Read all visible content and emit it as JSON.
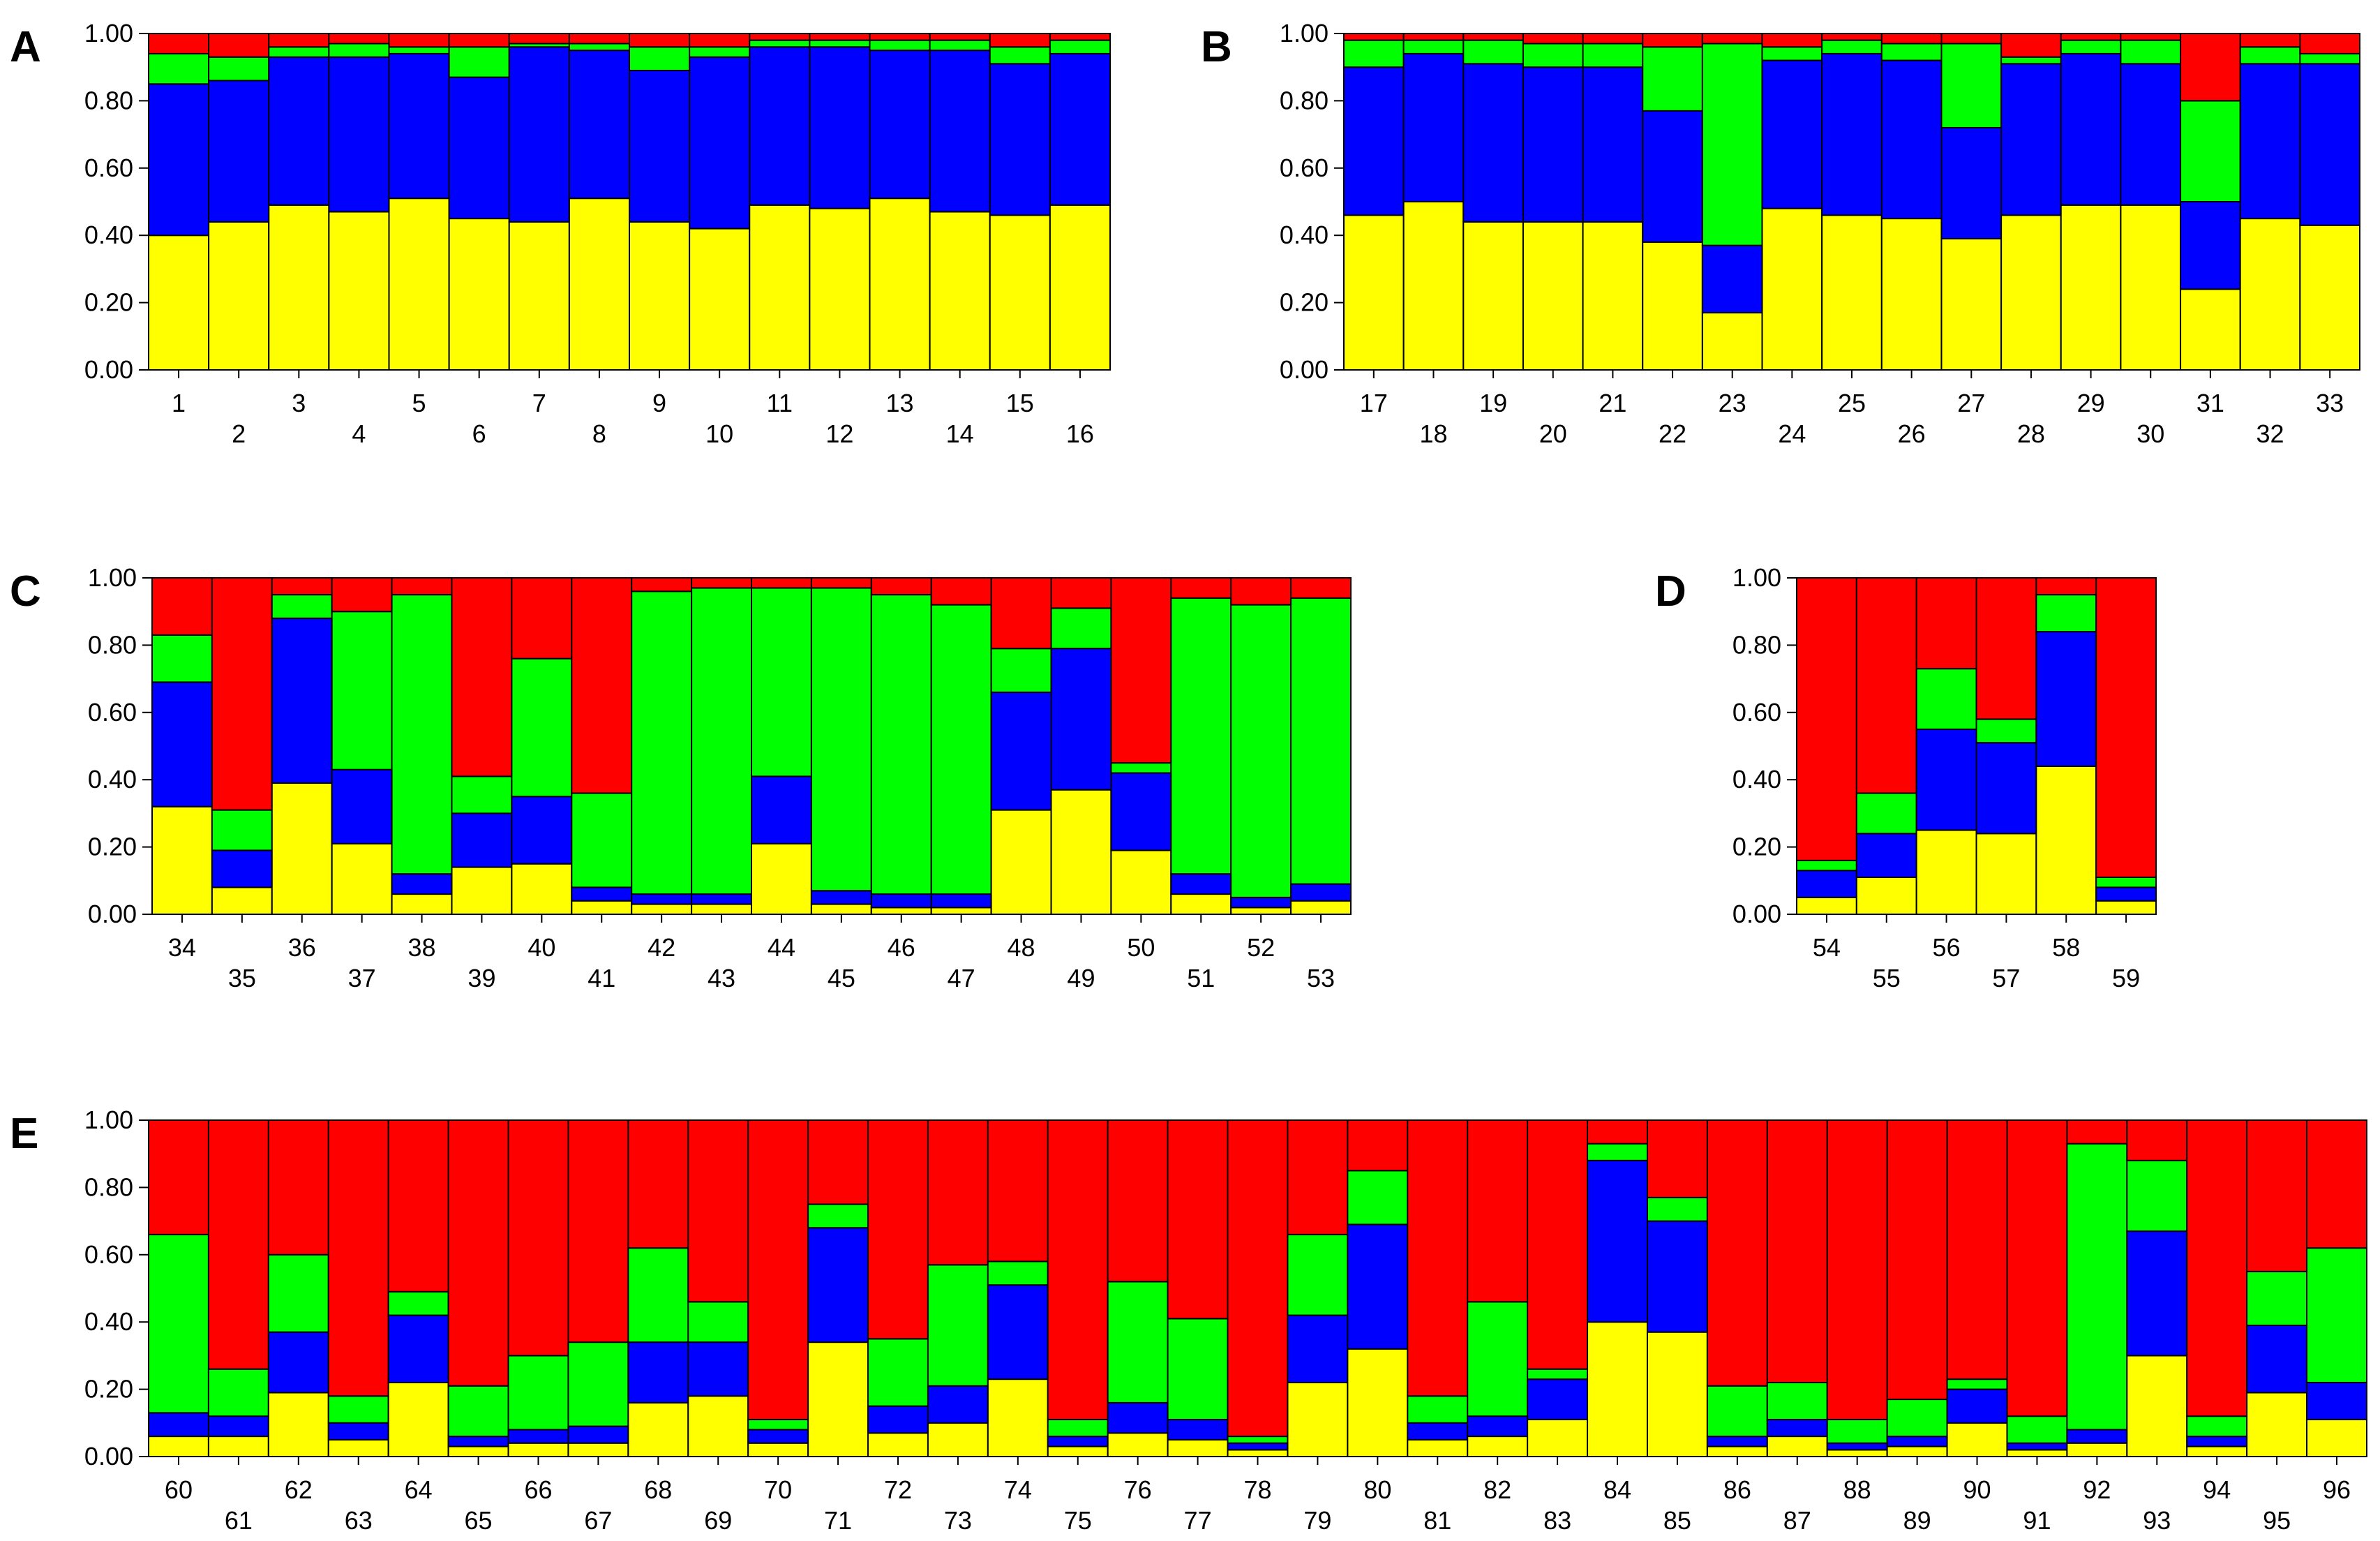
{
  "colors": {
    "yellow": "#ffff00",
    "blue": "#0000ff",
    "green": "#00ff00",
    "red": "#ff0000"
  },
  "yticks": [
    "0.00",
    "0.20",
    "0.40",
    "0.60",
    "0.80",
    "1.00"
  ],
  "chart_data": [
    {
      "type": "bar",
      "stacked": true,
      "panel": "A",
      "ylim": [
        0,
        1
      ],
      "categories": [
        "1",
        "2",
        "3",
        "4",
        "5",
        "6",
        "7",
        "8",
        "9",
        "10",
        "11",
        "12",
        "13",
        "14",
        "15",
        "16"
      ],
      "series": [
        {
          "name": "yellow",
          "values": [
            0.4,
            0.44,
            0.49,
            0.47,
            0.51,
            0.45,
            0.44,
            0.51,
            0.44,
            0.42,
            0.49,
            0.48,
            0.51,
            0.47,
            0.46,
            0.49
          ]
        },
        {
          "name": "blue",
          "values": [
            0.45,
            0.42,
            0.44,
            0.46,
            0.43,
            0.42,
            0.52,
            0.44,
            0.45,
            0.51,
            0.47,
            0.48,
            0.44,
            0.48,
            0.45,
            0.45
          ]
        },
        {
          "name": "green",
          "values": [
            0.09,
            0.07,
            0.03,
            0.04,
            0.02,
            0.09,
            0.01,
            0.02,
            0.07,
            0.03,
            0.02,
            0.02,
            0.03,
            0.03,
            0.05,
            0.04
          ]
        },
        {
          "name": "red",
          "values": [
            0.06,
            0.07,
            0.04,
            0.03,
            0.04,
            0.04,
            0.03,
            0.03,
            0.04,
            0.04,
            0.02,
            0.02,
            0.02,
            0.02,
            0.04,
            0.02
          ]
        }
      ]
    },
    {
      "type": "bar",
      "stacked": true,
      "panel": "B",
      "ylim": [
        0,
        1
      ],
      "categories": [
        "17",
        "18",
        "19",
        "20",
        "21",
        "22",
        "23",
        "24",
        "25",
        "26",
        "27",
        "28",
        "29",
        "30",
        "31",
        "32",
        "33"
      ],
      "series": [
        {
          "name": "yellow",
          "values": [
            0.46,
            0.5,
            0.44,
            0.44,
            0.44,
            0.38,
            0.17,
            0.48,
            0.46,
            0.45,
            0.39,
            0.46,
            0.49,
            0.49,
            0.24,
            0.45,
            0.43
          ]
        },
        {
          "name": "blue",
          "values": [
            0.44,
            0.44,
            0.47,
            0.46,
            0.46,
            0.39,
            0.2,
            0.44,
            0.48,
            0.47,
            0.33,
            0.45,
            0.45,
            0.42,
            0.26,
            0.46,
            0.48
          ]
        },
        {
          "name": "green",
          "values": [
            0.08,
            0.04,
            0.07,
            0.07,
            0.07,
            0.19,
            0.6,
            0.04,
            0.04,
            0.05,
            0.25,
            0.02,
            0.04,
            0.07,
            0.3,
            0.05,
            0.03
          ]
        },
        {
          "name": "red",
          "values": [
            0.02,
            0.02,
            0.02,
            0.03,
            0.03,
            0.04,
            0.03,
            0.04,
            0.02,
            0.03,
            0.03,
            0.07,
            0.02,
            0.02,
            0.2,
            0.04,
            0.06
          ]
        }
      ]
    },
    {
      "type": "bar",
      "stacked": true,
      "panel": "C",
      "ylim": [
        0,
        1
      ],
      "categories": [
        "34",
        "35",
        "36",
        "37",
        "38",
        "39",
        "40",
        "41",
        "42",
        "43",
        "44",
        "45",
        "46",
        "47",
        "48",
        "49",
        "50",
        "51",
        "52",
        "53"
      ],
      "series": [
        {
          "name": "yellow",
          "values": [
            0.32,
            0.08,
            0.39,
            0.21,
            0.06,
            0.14,
            0.15,
            0.04,
            0.03,
            0.03,
            0.21,
            0.03,
            0.02,
            0.02,
            0.31,
            0.37,
            0.19,
            0.06,
            0.02,
            0.04
          ]
        },
        {
          "name": "blue",
          "values": [
            0.37,
            0.11,
            0.49,
            0.22,
            0.06,
            0.16,
            0.2,
            0.04,
            0.03,
            0.03,
            0.2,
            0.04,
            0.04,
            0.04,
            0.35,
            0.42,
            0.23,
            0.06,
            0.03,
            0.05
          ]
        },
        {
          "name": "green",
          "values": [
            0.14,
            0.12,
            0.07,
            0.47,
            0.83,
            0.11,
            0.41,
            0.28,
            0.9,
            0.91,
            0.56,
            0.9,
            0.89,
            0.86,
            0.13,
            0.12,
            0.03,
            0.82,
            0.87,
            0.85
          ]
        },
        {
          "name": "red",
          "values": [
            0.17,
            0.69,
            0.05,
            0.1,
            0.05,
            0.59,
            0.24,
            0.64,
            0.04,
            0.03,
            0.03,
            0.03,
            0.05,
            0.08,
            0.21,
            0.09,
            0.55,
            0.06,
            0.08,
            0.06
          ]
        }
      ]
    },
    {
      "type": "bar",
      "stacked": true,
      "panel": "D",
      "ylim": [
        0,
        1
      ],
      "categories": [
        "54",
        "55",
        "56",
        "57",
        "58",
        "59"
      ],
      "series": [
        {
          "name": "yellow",
          "values": [
            0.05,
            0.11,
            0.25,
            0.24,
            0.44,
            0.04
          ]
        },
        {
          "name": "blue",
          "values": [
            0.08,
            0.13,
            0.3,
            0.27,
            0.4,
            0.04
          ]
        },
        {
          "name": "green",
          "values": [
            0.03,
            0.12,
            0.18,
            0.07,
            0.11,
            0.03
          ]
        },
        {
          "name": "red",
          "values": [
            0.84,
            0.64,
            0.27,
            0.42,
            0.05,
            0.89
          ]
        }
      ]
    },
    {
      "type": "bar",
      "stacked": true,
      "panel": "E",
      "ylim": [
        0,
        1
      ],
      "categories": [
        "60",
        "61",
        "62",
        "63",
        "64",
        "65",
        "66",
        "67",
        "68",
        "69",
        "70",
        "71",
        "72",
        "73",
        "74",
        "75",
        "76",
        "77",
        "78",
        "79",
        "80",
        "81",
        "82",
        "83",
        "84",
        "85",
        "86",
        "87",
        "88",
        "89",
        "90",
        "91",
        "92",
        "93",
        "94",
        "95",
        "96"
      ],
      "series": [
        {
          "name": "yellow",
          "values": [
            0.06,
            0.06,
            0.19,
            0.05,
            0.22,
            0.03,
            0.04,
            0.04,
            0.16,
            0.18,
            0.04,
            0.34,
            0.07,
            0.1,
            0.23,
            0.03,
            0.07,
            0.05,
            0.02,
            0.22,
            0.32,
            0.05,
            0.06,
            0.11,
            0.4,
            0.37,
            0.03,
            0.06,
            0.02,
            0.03,
            0.1,
            0.02,
            0.04,
            0.3,
            0.03,
            0.19,
            0.11
          ]
        },
        {
          "name": "blue",
          "values": [
            0.07,
            0.06,
            0.18,
            0.05,
            0.2,
            0.03,
            0.04,
            0.05,
            0.18,
            0.16,
            0.04,
            0.34,
            0.08,
            0.11,
            0.28,
            0.03,
            0.09,
            0.06,
            0.02,
            0.2,
            0.37,
            0.05,
            0.06,
            0.12,
            0.48,
            0.33,
            0.03,
            0.05,
            0.02,
            0.03,
            0.1,
            0.02,
            0.04,
            0.37,
            0.03,
            0.2,
            0.11
          ]
        },
        {
          "name": "green",
          "values": [
            0.53,
            0.14,
            0.23,
            0.08,
            0.07,
            0.15,
            0.22,
            0.25,
            0.28,
            0.12,
            0.03,
            0.07,
            0.2,
            0.36,
            0.07,
            0.05,
            0.36,
            0.3,
            0.02,
            0.24,
            0.16,
            0.08,
            0.34,
            0.03,
            0.05,
            0.07,
            0.15,
            0.11,
            0.07,
            0.11,
            0.03,
            0.08,
            0.85,
            0.21,
            0.06,
            0.16,
            0.4
          ]
        },
        {
          "name": "red",
          "values": [
            0.34,
            0.74,
            0.4,
            0.82,
            0.51,
            0.79,
            0.7,
            0.66,
            0.38,
            0.54,
            0.89,
            0.25,
            0.65,
            0.43,
            0.42,
            0.89,
            0.48,
            0.59,
            0.94,
            0.34,
            0.15,
            0.82,
            0.54,
            0.74,
            0.07,
            0.23,
            0.79,
            0.78,
            0.89,
            0.83,
            0.77,
            0.88,
            0.07,
            0.12,
            0.88,
            0.45,
            0.38
          ]
        }
      ]
    }
  ]
}
